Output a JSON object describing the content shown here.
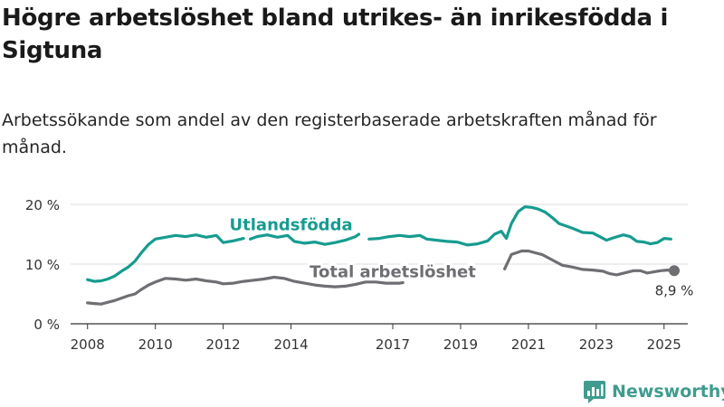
{
  "title": "Högre arbetslöshet bland utrikes- än inrikesfödda i Sigtuna",
  "subtitle": "Arbetssökande som andel av den registerbaserade arbetskraften månad för månad.",
  "brand": {
    "name": "Newsworthy",
    "icon": "newsworthy-chart-icon"
  },
  "colors": {
    "foreign": "#169c8f",
    "total": "#6f6f73",
    "axis": "#333333",
    "grid": "#dddddd"
  },
  "chart_data": {
    "type": "line",
    "xlabel": "",
    "ylabel": "",
    "xlim": [
      2007.5,
      2025.7
    ],
    "ylim": [
      0,
      20
    ],
    "x_ticks": [
      2008,
      2010,
      2012,
      2014,
      2017,
      2019,
      2021,
      2023,
      2025
    ],
    "x_tick_labels": [
      "2008",
      "2010",
      "2012",
      "2014",
      "2017",
      "2019",
      "2021",
      "2023",
      "2025"
    ],
    "y_ticks": [
      0,
      10,
      20
    ],
    "y_tick_labels": [
      "0 %",
      "10 %",
      "20 %"
    ],
    "grid": "horizontal",
    "series": [
      {
        "name": "Utlandsfödda",
        "color": "#169c8f",
        "segments": [
          [
            [
              2008.0,
              7.4
            ],
            [
              2008.2,
              7.1
            ],
            [
              2008.4,
              7.2
            ],
            [
              2008.6,
              7.5
            ],
            [
              2008.8,
              8.0
            ],
            [
              2009.0,
              8.8
            ],
            [
              2009.2,
              9.5
            ],
            [
              2009.4,
              10.5
            ],
            [
              2009.6,
              12.0
            ],
            [
              2009.8,
              13.3
            ],
            [
              2010.0,
              14.2
            ],
            [
              2010.3,
              14.5
            ],
            [
              2010.6,
              14.8
            ],
            [
              2010.9,
              14.6
            ],
            [
              2011.2,
              14.9
            ],
            [
              2011.5,
              14.5
            ],
            [
              2011.8,
              14.8
            ],
            [
              2012.0,
              13.6
            ],
            [
              2012.3,
              13.9
            ],
            [
              2012.6,
              14.3
            ]
          ],
          [
            [
              2012.8,
              14.2
            ],
            [
              2013.0,
              14.6
            ],
            [
              2013.3,
              14.9
            ],
            [
              2013.6,
              14.5
            ],
            [
              2013.9,
              14.8
            ],
            [
              2014.1,
              13.8
            ],
            [
              2014.4,
              13.5
            ],
            [
              2014.7,
              13.7
            ],
            [
              2015.0,
              13.3
            ],
            [
              2015.3,
              13.6
            ],
            [
              2015.6,
              14.0
            ],
            [
              2015.9,
              14.6
            ],
            [
              2016.0,
              15.0
            ]
          ],
          [
            [
              2016.3,
              14.2
            ],
            [
              2016.6,
              14.3
            ],
            [
              2016.9,
              14.6
            ],
            [
              2017.2,
              14.8
            ],
            [
              2017.5,
              14.6
            ],
            [
              2017.8,
              14.8
            ],
            [
              2018.0,
              14.2
            ],
            [
              2018.3,
              14.0
            ],
            [
              2018.6,
              13.8
            ],
            [
              2018.9,
              13.7
            ],
            [
              2019.2,
              13.2
            ],
            [
              2019.5,
              13.4
            ],
            [
              2019.8,
              13.9
            ],
            [
              2020.0,
              15.0
            ],
            [
              2020.2,
              15.5
            ],
            [
              2020.35,
              14.3
            ],
            [
              2020.5,
              16.8
            ],
            [
              2020.7,
              18.8
            ],
            [
              2020.9,
              19.6
            ],
            [
              2021.1,
              19.5
            ],
            [
              2021.3,
              19.2
            ],
            [
              2021.5,
              18.7
            ],
            [
              2021.7,
              17.8
            ],
            [
              2021.9,
              16.8
            ],
            [
              2022.1,
              16.4
            ],
            [
              2022.3,
              16.0
            ],
            [
              2022.6,
              15.3
            ],
            [
              2022.9,
              15.2
            ],
            [
              2023.1,
              14.6
            ],
            [
              2023.3,
              14.0
            ],
            [
              2023.5,
              14.4
            ],
            [
              2023.8,
              14.9
            ],
            [
              2024.0,
              14.6
            ],
            [
              2024.2,
              13.8
            ],
            [
              2024.4,
              13.7
            ],
            [
              2024.6,
              13.4
            ],
            [
              2024.8,
              13.6
            ],
            [
              2025.0,
              14.3
            ],
            [
              2025.2,
              14.2
            ]
          ]
        ],
        "label": "Utlandsfödda",
        "label_at": [
          2014.0,
          15.7
        ]
      },
      {
        "name": "Total arbetslöshet",
        "color": "#6f6f73",
        "segments": [
          [
            [
              2008.0,
              3.5
            ],
            [
              2008.2,
              3.4
            ],
            [
              2008.4,
              3.3
            ],
            [
              2008.6,
              3.6
            ],
            [
              2008.8,
              3.9
            ],
            [
              2009.0,
              4.3
            ],
            [
              2009.2,
              4.7
            ],
            [
              2009.4,
              5.0
            ],
            [
              2009.6,
              5.8
            ],
            [
              2009.8,
              6.5
            ],
            [
              2010.0,
              7.0
            ],
            [
              2010.3,
              7.6
            ],
            [
              2010.6,
              7.5
            ],
            [
              2010.9,
              7.3
            ],
            [
              2011.2,
              7.5
            ],
            [
              2011.5,
              7.2
            ],
            [
              2011.8,
              7.0
            ],
            [
              2012.0,
              6.7
            ],
            [
              2012.3,
              6.8
            ],
            [
              2012.6,
              7.1
            ],
            [
              2012.9,
              7.3
            ],
            [
              2013.2,
              7.5
            ],
            [
              2013.5,
              7.8
            ],
            [
              2013.8,
              7.6
            ],
            [
              2014.1,
              7.1
            ],
            [
              2014.4,
              6.8
            ],
            [
              2014.7,
              6.5
            ],
            [
              2015.0,
              6.3
            ],
            [
              2015.3,
              6.2
            ],
            [
              2015.6,
              6.3
            ],
            [
              2015.9,
              6.6
            ],
            [
              2016.2,
              7.0
            ],
            [
              2016.5,
              7.0
            ],
            [
              2016.8,
              6.8
            ],
            [
              2017.2,
              6.8
            ],
            [
              2017.3,
              6.9
            ]
          ],
          [
            [
              2020.3,
              9.2
            ],
            [
              2020.5,
              11.6
            ],
            [
              2020.8,
              12.2
            ],
            [
              2021.0,
              12.2
            ],
            [
              2021.2,
              11.9
            ],
            [
              2021.4,
              11.6
            ],
            [
              2021.6,
              11.0
            ],
            [
              2021.8,
              10.4
            ],
            [
              2022.0,
              9.8
            ],
            [
              2022.3,
              9.5
            ],
            [
              2022.6,
              9.1
            ],
            [
              2022.9,
              9.0
            ],
            [
              2023.2,
              8.8
            ],
            [
              2023.4,
              8.4
            ],
            [
              2023.6,
              8.2
            ],
            [
              2023.9,
              8.6
            ],
            [
              2024.1,
              8.9
            ],
            [
              2024.3,
              8.9
            ],
            [
              2024.5,
              8.5
            ],
            [
              2024.7,
              8.7
            ],
            [
              2024.9,
              8.9
            ],
            [
              2025.1,
              9.0
            ],
            [
              2025.3,
              8.9
            ]
          ]
        ],
        "label": "Total arbetslöshet",
        "label_at": [
          2017.0,
          7.8
        ]
      }
    ],
    "annotations": [
      {
        "text": "8,9 %",
        "x": 2025.3,
        "y": 8.9,
        "series": "Total arbetslöshet",
        "marker": "end-dot"
      }
    ]
  }
}
